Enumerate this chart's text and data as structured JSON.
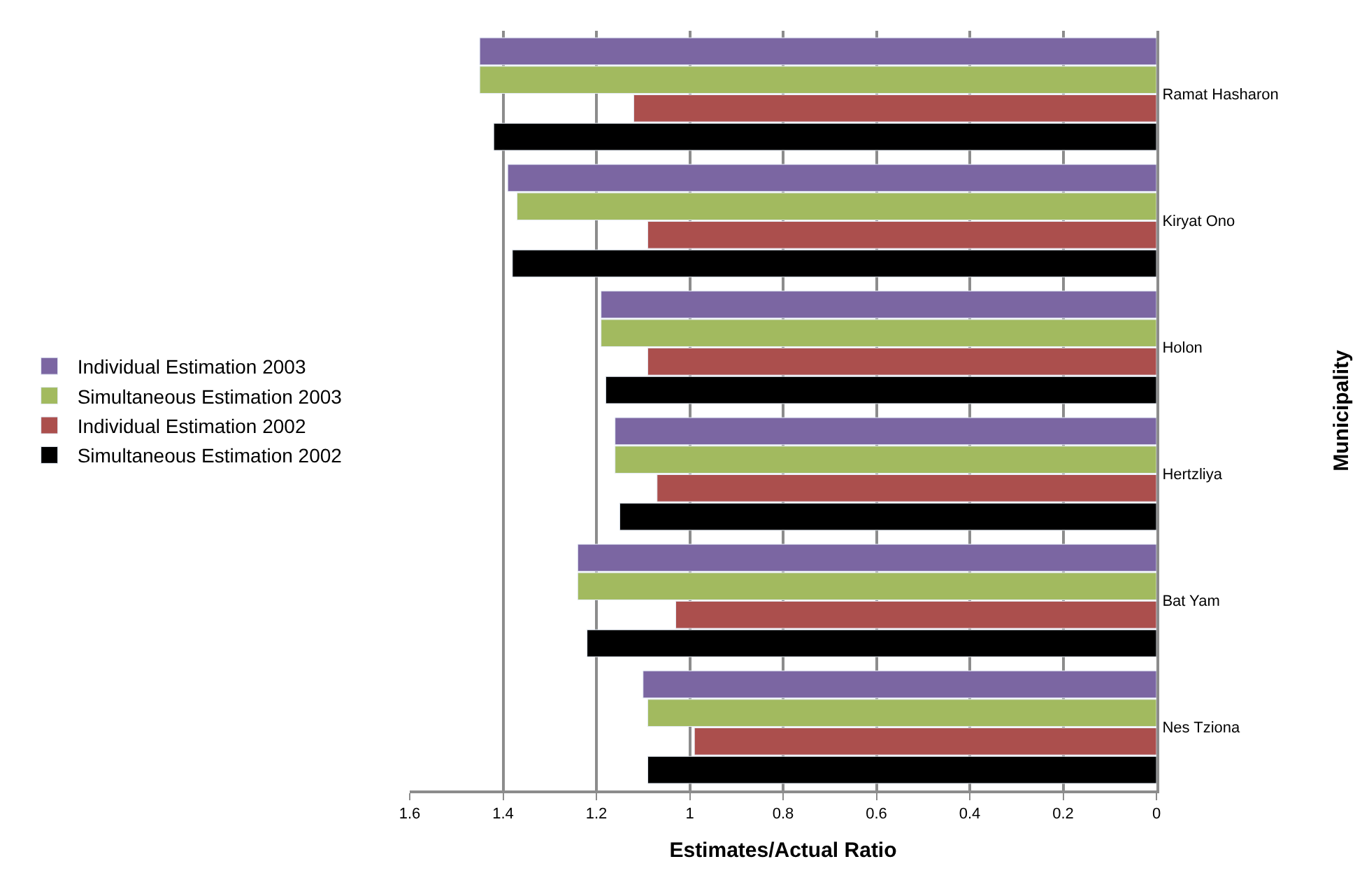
{
  "chart_data": {
    "type": "bar",
    "orientation": "horizontal",
    "xlabel": "Estimates/Actual Ratio",
    "ylabel": "Municipality",
    "categories": [
      "Ramat Hasharon",
      "Kiryat Ono",
      "Holon",
      "Hertzliya",
      "Bat Yam",
      "Nes Tziona"
    ],
    "series": [
      {
        "name": "Individual Estimation 2003",
        "color": "#7b66a2",
        "values": [
          1.45,
          1.39,
          1.19,
          1.16,
          1.24,
          1.1
        ]
      },
      {
        "name": "Simultaneous Estimation 2003",
        "color": "#a2ba5f",
        "values": [
          1.45,
          1.37,
          1.19,
          1.16,
          1.24,
          1.09
        ]
      },
      {
        "name": "Individual Estimation 2002",
        "color": "#ab4f4d",
        "values": [
          1.12,
          1.09,
          1.09,
          1.07,
          1.03,
          0.99
        ]
      },
      {
        "name": "Simultaneous Estimation 2002",
        "color": "#000000",
        "values": [
          1.42,
          1.38,
          1.18,
          1.15,
          1.22,
          1.09
        ]
      }
    ],
    "xlim": [
      1.6,
      0
    ],
    "xticks": [
      1.6,
      1.4,
      1.2,
      1,
      0.8,
      0.6,
      0.4,
      0.2,
      0
    ],
    "grid": "x",
    "legend": "left"
  }
}
